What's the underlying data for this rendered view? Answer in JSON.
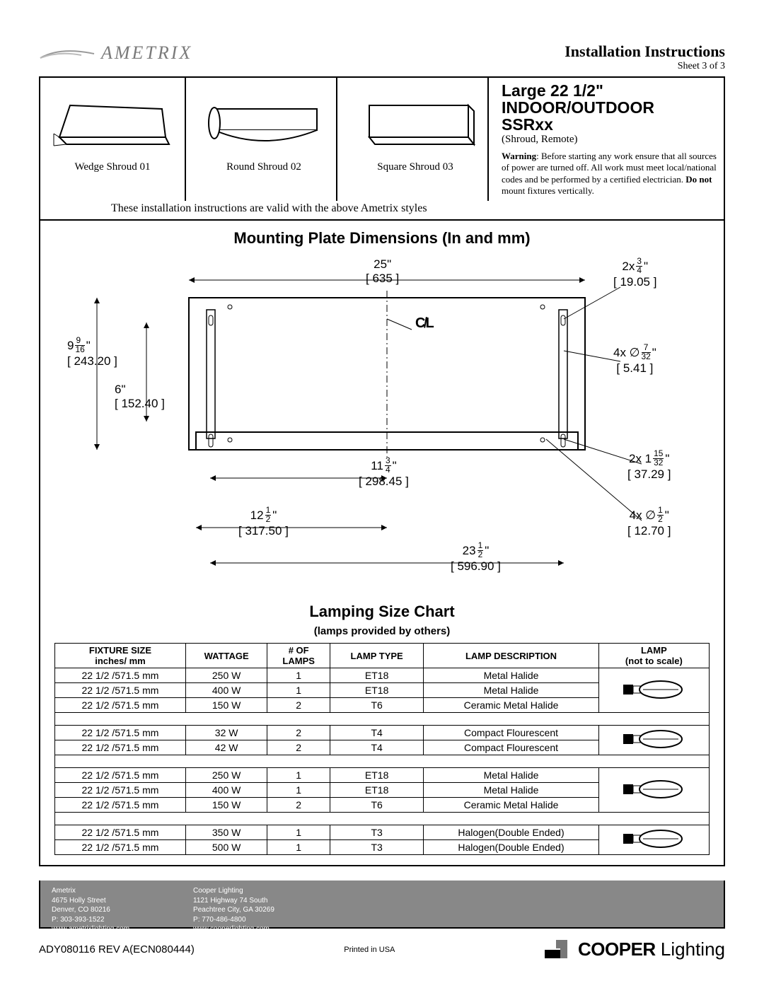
{
  "header": {
    "brand": "AMETRIX",
    "title": "Installation Instructions",
    "sheet": "Sheet 3 of 3"
  },
  "top": {
    "shrouds": [
      {
        "label": "Wedge Shroud  01"
      },
      {
        "label": "Round Shroud  02"
      },
      {
        "label": "Square Shroud  03"
      }
    ],
    "valid_note": "These installation instructions are valid with the above Ametrix styles",
    "product_line1": "Large 22 1/2\"",
    "product_line2": "INDOOR/OUTDOOR",
    "product_line3": "SSRxx",
    "product_sub": "(Shroud, Remote)",
    "warning_label": "Warning",
    "warning_body": ": Before starting any work ensure that all sources of power are turned off.  All work must meet local/national codes and be performed by a certified electrician.  ",
    "warning_bold": "Do not",
    "warning_tail": " mount fixtures vertically."
  },
  "mounting": {
    "title": "Mounting Plate Dimensions (In and mm)",
    "dims": {
      "w25": {
        "in": "25\"",
        "mm": "[ 635 ]"
      },
      "slot_top": {
        "in_pre": "2x   ",
        "num": "3",
        "den": "4",
        "suf": "\"",
        "mm": "[ 19.05 ]"
      },
      "h9": {
        "pre": "9",
        "num": "9",
        "den": "16",
        "suf": "\"",
        "mm": "[ 243.20 ]"
      },
      "h6": {
        "in": "6\"",
        "mm": "[ 152.40 ]"
      },
      "hole7": {
        "pre": "4x  ∅",
        "num": "7",
        "den": "32",
        "suf": "\"",
        "mm": "[ 5.41 ]"
      },
      "w11": {
        "pre": "11",
        "num": "3",
        "den": "4",
        "suf": "\"",
        "mm": "[ 298.45 ]"
      },
      "w12": {
        "pre": "12",
        "num": "1",
        "den": "2",
        "suf": "\"",
        "mm": "[ 317.50 ]"
      },
      "w23": {
        "pre": "23",
        "num": "1",
        "den": "2",
        "suf": "\"",
        "mm": "[ 596.90 ]"
      },
      "slot15": {
        "pre": "2x   1",
        "num": "15",
        "den": "32",
        "suf": "\"",
        "mm": "[ 37.29 ]"
      },
      "hole12": {
        "pre": "4x   ∅",
        "num": "1",
        "den": "2",
        "suf": "\"",
        "mm": "[ 12.70 ]"
      },
      "cl": "C̸L"
    }
  },
  "lamping": {
    "title": "Lamping Size Chart",
    "subtitle": "(lamps provided by others)",
    "columns": {
      "c1a": "FIXTURE SIZE",
      "c1b": "inches/ mm",
      "c2": "WATTAGE",
      "c3a": "# OF",
      "c3b": "LAMPS",
      "c4": "LAMP TYPE",
      "c5": "LAMP DESCRIPTION",
      "c6a": "LAMP",
      "c6b": "(not to scale)"
    },
    "rows": [
      [
        "22 1/2 /571.5 mm",
        "250 W",
        "1",
        "ET18",
        "Metal Halide"
      ],
      [
        "22 1/2 /571.5 mm",
        "400 W",
        "1",
        "ET18",
        "Metal Halide"
      ],
      [
        "22 1/2 /571.5 mm",
        "150 W",
        "2",
        "T6",
        "Ceramic Metal Halide"
      ],
      "spacer",
      [
        "22 1/2 /571.5 mm",
        "32 W",
        "2",
        "T4",
        "Compact Flourescent"
      ],
      [
        "22 1/2 /571.5 mm",
        "42 W",
        "2",
        "T4",
        "Compact Flourescent"
      ],
      "spacer",
      [
        "22 1/2 /571.5 mm",
        "250 W",
        "1",
        "ET18",
        "Metal Halide"
      ],
      [
        "22 1/2 /571.5 mm",
        "400 W",
        "1",
        "ET18",
        "Metal Halide"
      ],
      [
        "22 1/2 /571.5 mm",
        "150 W",
        "2",
        "T6",
        "Ceramic Metal Halide"
      ],
      "spacer",
      [
        "22 1/2 /571.5 mm",
        "350 W",
        "1",
        "T3",
        "Halogen(Double Ended)"
      ],
      [
        "22 1/2 /571.5 mm",
        "500 W",
        "1",
        "T3",
        "Halogen(Double Ended)"
      ]
    ]
  },
  "footer": {
    "left": [
      "Ametrix",
      "4675 Holly Street",
      "Denver, CO 80216",
      "P: 303-393-1522",
      "www.ametrixlighting.com"
    ],
    "right": [
      "Cooper Lighting",
      "1121 Highway 74 South",
      "Peachtree City, GA 30269",
      "P: 770-486-4800",
      "www.cooperlighting.com"
    ],
    "docid": "ADY080116   REV A(ECN080444)",
    "printed": "Printed in USA",
    "logo_bold": "COOPER",
    "logo_light": " Lighting"
  }
}
